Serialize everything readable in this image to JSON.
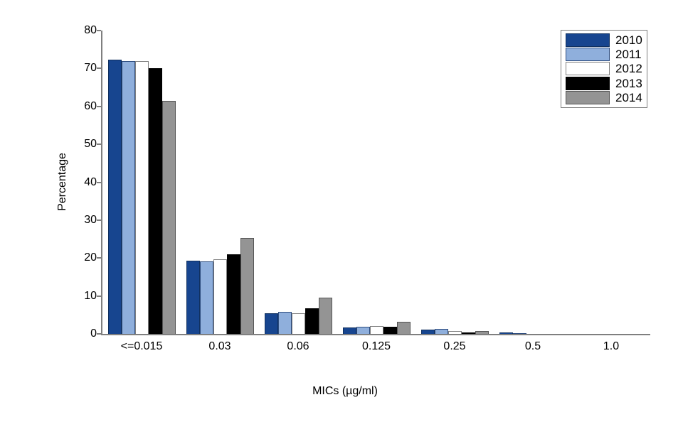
{
  "figure": {
    "background": "#FFFFFF",
    "axis_color": "#7F7F7F"
  },
  "chart_data": {
    "type": "bar",
    "title": "",
    "xlabel": "MICs (µg/ml)",
    "ylabel": "Percentage",
    "categories": [
      "<=0.015",
      "0.03",
      "0.06",
      "0.125",
      "0.25",
      "0.5",
      "1.0"
    ],
    "series": [
      {
        "name": "2010",
        "color": "#17458F",
        "border": "#10305F",
        "values": [
          72.3,
          19.3,
          5.4,
          1.6,
          1.2,
          0.3,
          0
        ]
      },
      {
        "name": "2011",
        "color": "#8FAFDC",
        "border": "#2E4D7F",
        "values": [
          71.9,
          19.1,
          5.8,
          1.9,
          1.4,
          0.2,
          0
        ]
      },
      {
        "name": "2012",
        "color": "#FFFFFF",
        "border": "#7F7F7F",
        "values": [
          71.9,
          19.7,
          5.5,
          2.1,
          0.8,
          0,
          0
        ]
      },
      {
        "name": "2013",
        "color": "#000000",
        "border": "#000000",
        "values": [
          70.0,
          21.0,
          6.7,
          1.8,
          0.4,
          0,
          0
        ]
      },
      {
        "name": "2014",
        "color": "#949494",
        "border": "#555555",
        "values": [
          61.5,
          25.2,
          9.5,
          3.2,
          0.7,
          0,
          0
        ]
      }
    ],
    "ylim": [
      0,
      80
    ],
    "yticks": [
      0,
      10,
      20,
      30,
      40,
      50,
      60,
      70,
      80
    ],
    "grid": false,
    "legend_position": "top-right",
    "legend_labels": [
      "2010",
      "2011",
      "2012",
      "2013",
      "2014"
    ]
  }
}
